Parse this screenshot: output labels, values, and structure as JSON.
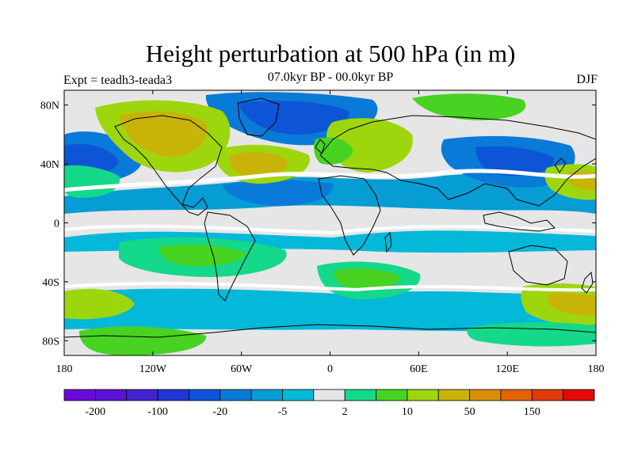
{
  "title": "Height perturbation at 500 hPa (in m)",
  "subtitle": "07.0kyr BP - 00.0kyr BP",
  "left_text": "Expt = teadh3-teada3",
  "right_text": "DJF",
  "lat_labels": [
    "80N",
    "40N",
    "0",
    "40S",
    "80S"
  ],
  "lon_labels": [
    "180",
    "120W",
    "60W",
    "0",
    "60E",
    "120E",
    "180"
  ],
  "colorbar": {
    "colors": [
      "#6a0ad6",
      "#5b12d2",
      "#4423d0",
      "#2136d2",
      "#0d55d6",
      "#0a7ad8",
      "#069cd4",
      "#03b8d8",
      "#e6e6e6",
      "#14d88a",
      "#48d222",
      "#9ed60e",
      "#c8b408",
      "#d88e06",
      "#e06406",
      "#e03a0a",
      "#e00a0a"
    ],
    "tick_labels": [
      "-200",
      "-100",
      "-20",
      "-5",
      "2",
      "10",
      "50",
      "150"
    ]
  },
  "chart_data": {
    "type": "heatmap",
    "title": "Height perturbation at 500 hPa (in m)",
    "subtitle": "07.0kyr BP - 00.0kyr BP",
    "xlim": [
      -180,
      180
    ],
    "ylim": [
      -90,
      90
    ],
    "x_ticks": [
      -180,
      -120,
      -60,
      0,
      60,
      120,
      180
    ],
    "y_ticks": [
      80,
      40,
      0,
      -40,
      -80
    ],
    "levels": [
      -200,
      -150,
      -100,
      -50,
      -20,
      -10,
      -5,
      -2,
      2,
      5,
      10,
      20,
      50,
      100,
      150,
      200
    ],
    "regions": [
      {
        "lon": -125,
        "lat": 62,
        "value": 30
      },
      {
        "lon": -58,
        "lat": 40,
        "value": 30
      },
      {
        "lon": -60,
        "lat": 74,
        "value": -10
      },
      {
        "lon": -155,
        "lat": 42,
        "value": -20
      },
      {
        "lon": 20,
        "lat": 50,
        "value": 15
      },
      {
        "lon": 50,
        "lat": 74,
        "value": 12
      },
      {
        "lon": 0,
        "lat": 20,
        "value": -5
      },
      {
        "lon": 115,
        "lat": 38,
        "value": -20
      },
      {
        "lon": 165,
        "lat": 28,
        "value": 20
      },
      {
        "lon": -100,
        "lat": -38,
        "value": 8
      },
      {
        "lon": 20,
        "lat": -42,
        "value": 10
      },
      {
        "lon": -115,
        "lat": -62,
        "value": -8
      },
      {
        "lon": 165,
        "lat": -58,
        "value": 30
      },
      {
        "lon": 90,
        "lat": -30,
        "value": -8
      },
      {
        "lon": -160,
        "lat": -78,
        "value": 6
      }
    ]
  }
}
